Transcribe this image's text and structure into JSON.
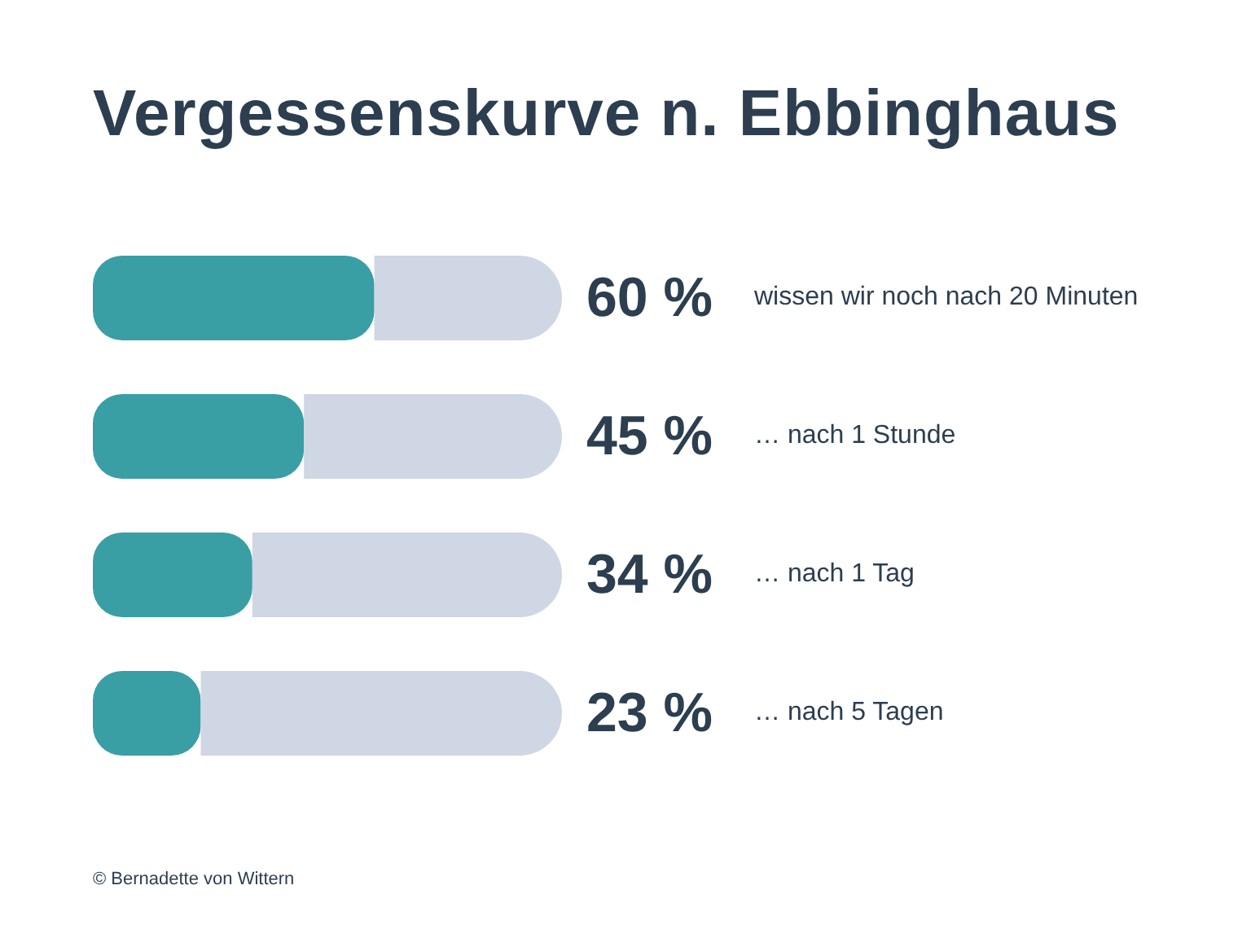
{
  "chart_data": {
    "type": "bar",
    "orientation": "horizontal",
    "title": "Vergessenskurve n. Ebbinghaus",
    "categories": [
      "wissen wir noch nach 20 Minuten",
      "… nach 1 Stunde",
      "… nach 1 Tag",
      "… nach 5 Tagen"
    ],
    "stacked": true,
    "series": [
      {
        "color": "#3a9ea5",
        "values": [
          60,
          45,
          34,
          23
        ],
        "value_labels": [
          "60 %",
          "45 %",
          "34 %",
          "23 %"
        ]
      },
      {
        "color": "#cfd6e4",
        "values": [
          40,
          55,
          66,
          77
        ]
      }
    ],
    "xlim": [
      0,
      100
    ],
    "tick_labels": "y",
    "annotations": [
      "© Bernadette von Wittern"
    ]
  }
}
